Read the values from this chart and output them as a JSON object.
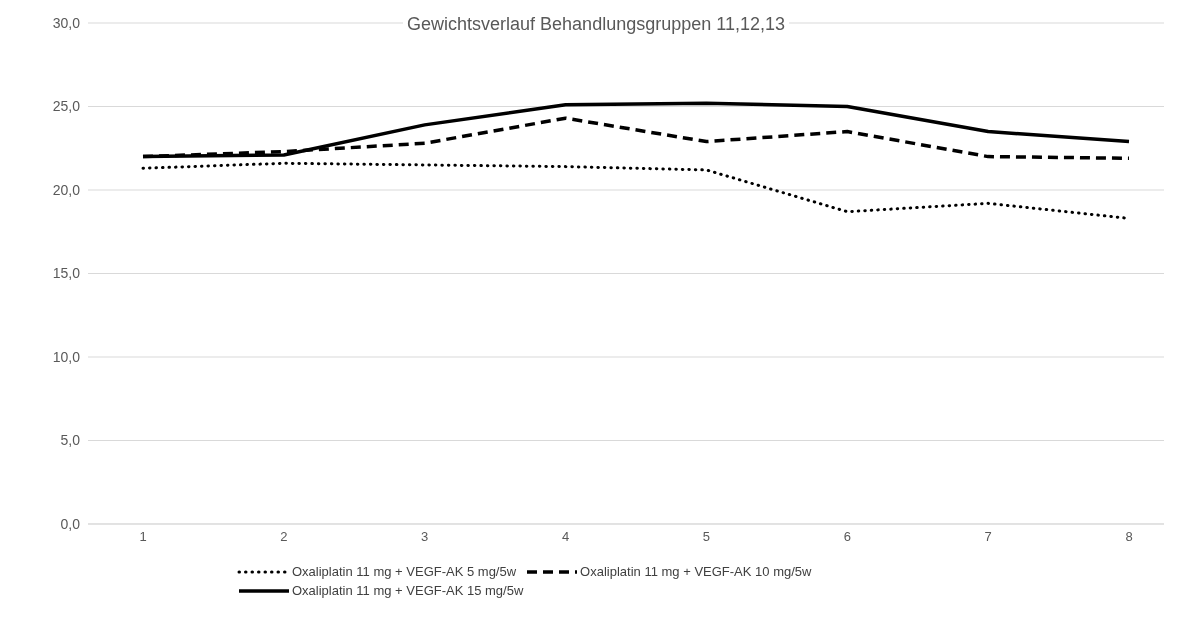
{
  "chart_data": {
    "type": "line",
    "title": "Gewichtsverlauf Behandlungsgruppen 11,12,13",
    "categories": [
      "1",
      "2",
      "3",
      "4",
      "5",
      "6",
      "7",
      "8"
    ],
    "series": [
      {
        "name": "Oxaliplatin 11 mg + VEGF-AK 5 mg/5w",
        "color": "#000000",
        "line_style": "dotted",
        "values": [
          21.3,
          21.6,
          21.5,
          21.4,
          21.2,
          18.7,
          19.2,
          18.3
        ]
      },
      {
        "name": "Oxaliplatin 11 mg + VEGF-AK 10 mg/5w",
        "color": "#000000",
        "line_style": "dashed",
        "values": [
          22.0,
          22.3,
          22.8,
          24.3,
          22.9,
          23.5,
          22.0,
          21.9
        ]
      },
      {
        "name": "Oxaliplatin 11 mg + VEGF-AK 15 mg/5w",
        "color": "#000000",
        "line_style": "solid",
        "values": [
          22.0,
          22.1,
          23.9,
          25.1,
          25.2,
          25.0,
          23.5,
          22.9
        ]
      }
    ],
    "ylim": [
      0,
      30
    ],
    "yticks": [
      {
        "value": 0,
        "label": "0,0"
      },
      {
        "value": 5,
        "label": "5,0"
      },
      {
        "value": 10,
        "label": "10,0"
      },
      {
        "value": 15,
        "label": "15,0"
      },
      {
        "value": 20,
        "label": "20,0"
      },
      {
        "value": 25,
        "label": "25,0"
      },
      {
        "value": 30,
        "label": "30,0"
      }
    ],
    "grid": "y",
    "legend": "bottom",
    "marker": "none"
  }
}
